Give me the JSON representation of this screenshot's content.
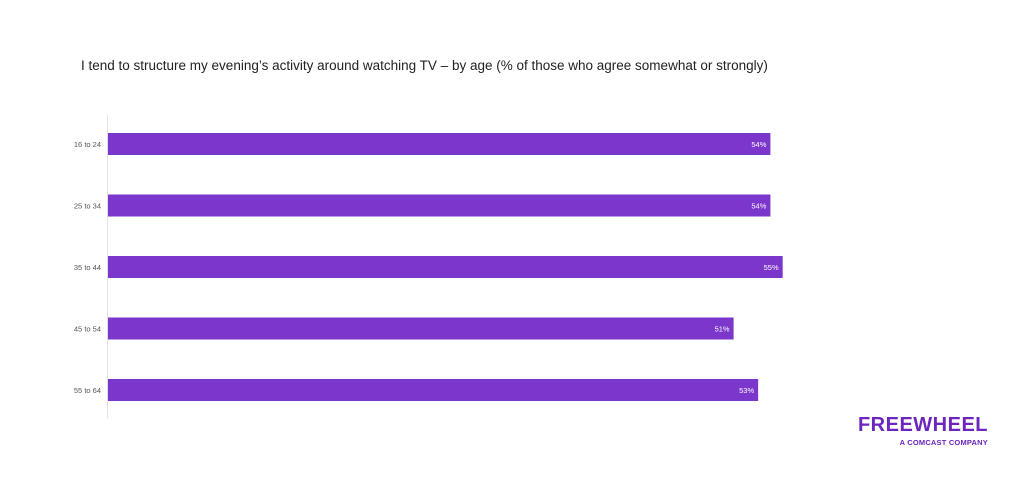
{
  "chart_data": {
    "type": "bar",
    "orientation": "horizontal",
    "title": "I tend to structure my evening’s activity around watching TV – by age (% of those who agree somewhat or strongly)",
    "categories": [
      "16 to 24",
      "25 to 34",
      "35 to 44",
      "45 to 54",
      "55 to 64"
    ],
    "values": [
      54,
      54,
      55,
      51,
      53
    ],
    "value_labels": [
      "54%",
      "54%",
      "55%",
      "51%",
      "53%"
    ],
    "xlim": [
      0,
      60
    ],
    "grid": false,
    "legend": "none",
    "bar_color": "#7b36cc",
    "label_color": "#ffffff"
  },
  "brand": {
    "name": "FREEWHEEL",
    "tagline": "A COMCAST COMPANY",
    "color": "#6c25be"
  }
}
